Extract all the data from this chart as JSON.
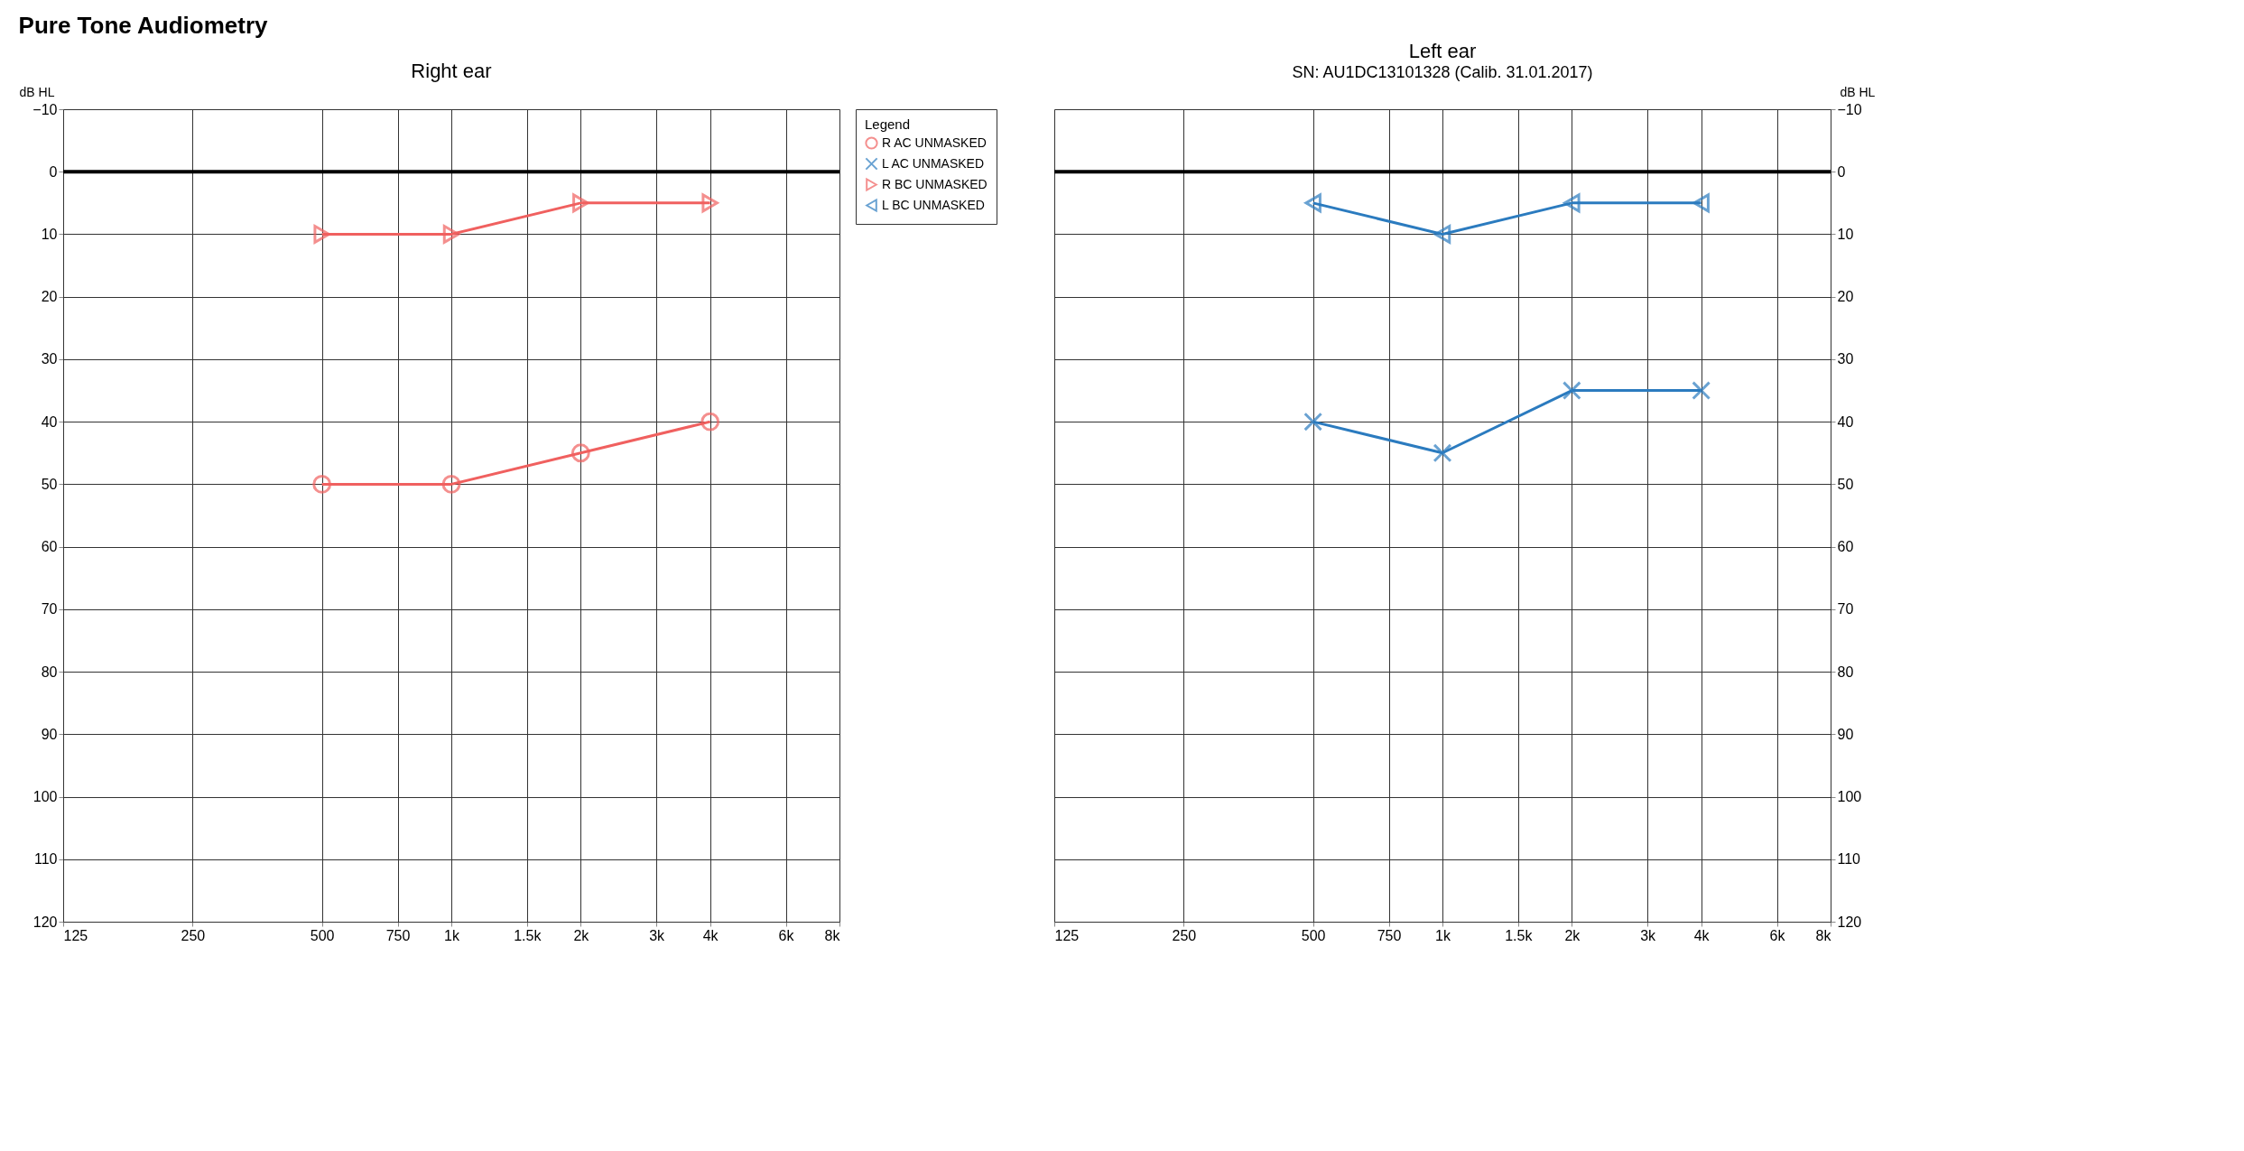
{
  "chart_data": [
    {
      "type": "line",
      "title": "Right ear",
      "annotations": [
        "Pure Tone Audiometry"
      ],
      "ylabel": "dB HL",
      "legend_title": "Legend",
      "legend": "right",
      "grid": true,
      "x": [
        500,
        1000,
        2000,
        4000
      ],
      "xlim": [
        125,
        8000
      ],
      "log": "x",
      "xticks": [
        125,
        250,
        500,
        750,
        {
          "value": 1000,
          "label": "1k"
        },
        {
          "value": 1500,
          "label": "1.5k"
        },
        {
          "value": 2000,
          "label": "2k"
        },
        {
          "value": 3000,
          "label": "3k"
        },
        {
          "value": 4000,
          "label": "4k"
        },
        {
          "value": 6000,
          "label": "6k"
        },
        {
          "value": 8000,
          "label": "8k"
        }
      ],
      "ylim": [
        120,
        -10
      ],
      "yticks": [
        -10,
        0,
        10,
        20,
        30,
        40,
        50,
        60,
        70,
        80,
        90,
        100,
        110,
        120
      ],
      "ref_lines": [
        {
          "axis": "y",
          "value": 0,
          "color": "#000000"
        }
      ],
      "series": [
        {
          "name": "R AC UNMASKED",
          "color": "#f0605f",
          "marker": "circle",
          "values": [
            50,
            50,
            45,
            40
          ]
        },
        {
          "name": "R BC UNMASKED",
          "color": "#f0605f",
          "marker": "triangle",
          "values": [
            10,
            10,
            5,
            5
          ]
        }
      ]
    },
    {
      "type": "line",
      "title": "Left ear",
      "annotations": [
        "SN: AU1DC13101328 (Calib. 31.01.2017)"
      ],
      "ylabel": "dB HL",
      "legend": "left",
      "grid": true,
      "x": [
        500,
        1000,
        2000,
        4000
      ],
      "xlim": [
        125,
        8000
      ],
      "log": "x",
      "xticks": [
        125,
        250,
        500,
        750,
        {
          "value": 1000,
          "label": "1k"
        },
        {
          "value": 1500,
          "label": "1.5k"
        },
        {
          "value": 2000,
          "label": "2k"
        },
        {
          "value": 3000,
          "label": "3k"
        },
        {
          "value": 4000,
          "label": "4k"
        },
        {
          "value": 6000,
          "label": "6k"
        },
        {
          "value": 8000,
          "label": "8k"
        }
      ],
      "ylim": [
        120,
        -10
      ],
      "yticks": [
        -10,
        0,
        10,
        20,
        30,
        40,
        50,
        60,
        70,
        80,
        90,
        100,
        110,
        120
      ],
      "ref_lines": [
        {
          "axis": "y",
          "value": 0,
          "color": "#000000"
        }
      ],
      "series": [
        {
          "name": "L AC UNMASKED",
          "color": "#2b7bbf",
          "marker": "cross",
          "values": [
            40,
            45,
            35,
            35
          ]
        },
        {
          "name": "L BC UNMASKED",
          "color": "#2b7bbf",
          "marker": "triangle",
          "values": [
            5,
            10,
            5,
            5
          ]
        }
      ]
    }
  ]
}
